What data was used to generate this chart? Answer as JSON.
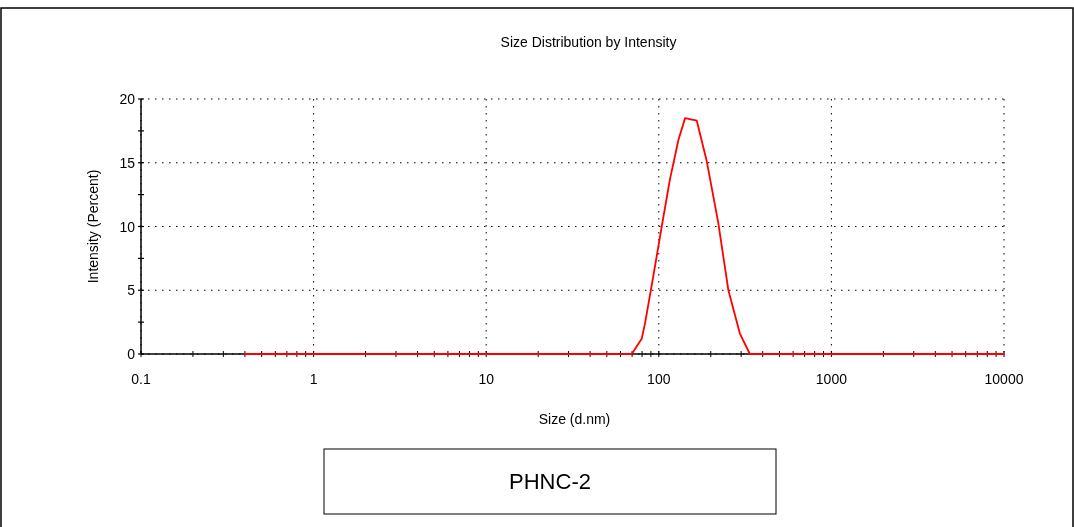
{
  "chart_data": {
    "type": "line",
    "title": "Size Distribution by Intensity",
    "xlabel": "Size (d.nm)",
    "ylabel": "Intensity (Percent)",
    "annotations": [
      "PHNC-2"
    ],
    "log": "x",
    "grid": true,
    "marker": "none",
    "line_style": "solid",
    "xlim": [
      0.1,
      10000
    ],
    "ylim": [
      0,
      20
    ],
    "xticks": [
      0.1,
      {
        "value": 0.2,
        "label": null
      },
      {
        "value": 0.3,
        "label": null
      },
      {
        "value": 0.4,
        "label": null
      },
      {
        "value": 0.5,
        "label": null
      },
      {
        "value": 0.6,
        "label": null
      },
      {
        "value": 0.7,
        "label": null
      },
      {
        "value": 0.8,
        "label": null
      },
      {
        "value": 0.9,
        "label": null
      },
      1,
      {
        "value": 2,
        "label": null
      },
      {
        "value": 3,
        "label": null
      },
      {
        "value": 4,
        "label": null
      },
      {
        "value": 5,
        "label": null
      },
      {
        "value": 6,
        "label": null
      },
      {
        "value": 7,
        "label": null
      },
      {
        "value": 8,
        "label": null
      },
      {
        "value": 9,
        "label": null
      },
      10,
      {
        "value": 20,
        "label": null
      },
      {
        "value": 30,
        "label": null
      },
      {
        "value": 40,
        "label": null
      },
      {
        "value": 50,
        "label": null
      },
      {
        "value": 60,
        "label": null
      },
      {
        "value": 70,
        "label": null
      },
      {
        "value": 80,
        "label": null
      },
      {
        "value": 90,
        "label": null
      },
      100,
      {
        "value": 200,
        "label": null
      },
      {
        "value": 300,
        "label": null
      },
      {
        "value": 400,
        "label": null
      },
      {
        "value": 500,
        "label": null
      },
      {
        "value": 600,
        "label": null
      },
      {
        "value": 700,
        "label": null
      },
      {
        "value": 800,
        "label": null
      },
      {
        "value": 900,
        "label": null
      },
      1000,
      {
        "value": 2000,
        "label": null
      },
      {
        "value": 3000,
        "label": null
      },
      {
        "value": 4000,
        "label": null
      },
      {
        "value": 5000,
        "label": null
      },
      {
        "value": 6000,
        "label": null
      },
      {
        "value": 7000,
        "label": null
      },
      {
        "value": 8000,
        "label": null
      },
      {
        "value": 9000,
        "label": null
      },
      10000
    ],
    "yticks": [
      0,
      {
        "value": 2.5,
        "label": null
      },
      5,
      {
        "value": 7.5,
        "label": null
      },
      10,
      {
        "value": 12.5,
        "label": null
      },
      15,
      {
        "value": 17.5,
        "label": null
      },
      20
    ],
    "series": [
      {
        "color": "#ff0000",
        "x": [
          0.4,
          69.7,
          79.6,
          83.2,
          92.9,
          104,
          116,
          130,
          142,
          166,
          189,
          221,
          253,
          295,
          337,
          10000
        ],
        "values": [
          0,
          0,
          1.2,
          2.4,
          6.1,
          10,
          13.7,
          16.8,
          18.5,
          18.3,
          15.2,
          10.3,
          5,
          1.6,
          0,
          0
        ]
      }
    ]
  }
}
